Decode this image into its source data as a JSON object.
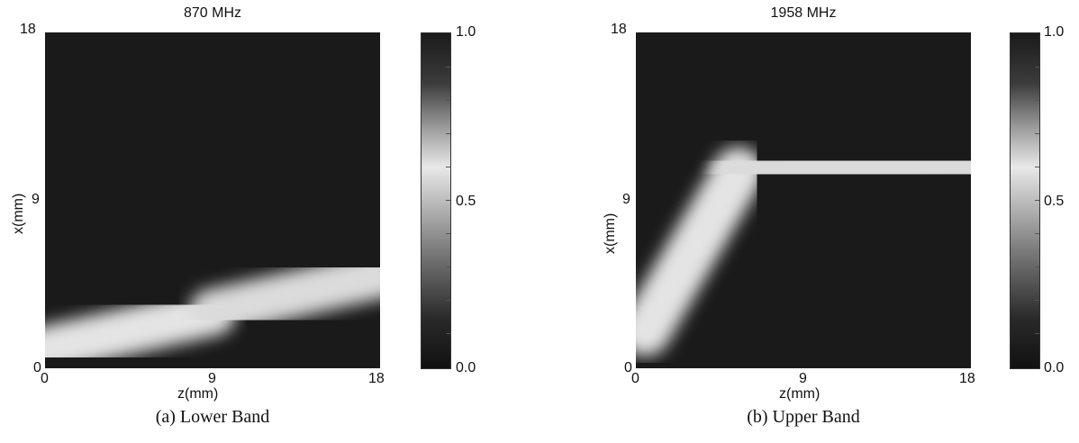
{
  "chart_data": [
    {
      "type": "heatmap",
      "title": "870 MHz",
      "xlabel": "z(mm)",
      "ylabel": "x(mm)",
      "xlim": [
        0,
        18
      ],
      "ylim": [
        0,
        18
      ],
      "x_ticks": [
        "0",
        "9",
        "18"
      ],
      "y_ticks": [
        "0",
        "9",
        "18"
      ],
      "colorbar": {
        "range": [
          0.0,
          1.0
        ],
        "ticks": [
          "0.0",
          "0.5",
          "1.0"
        ],
        "colormap": "black-white-black"
      },
      "caption": "(a) Lower Band",
      "bands": [
        {
          "z0": 0,
          "x0": 1,
          "z1": 9,
          "x1": 3,
          "level": 0.6
        },
        {
          "z0": 9,
          "x0": 3,
          "z1": 18,
          "x1": 5,
          "level": 0.55
        }
      ]
    },
    {
      "type": "heatmap",
      "title": "1958 MHz",
      "xlabel": "z(mm)",
      "ylabel": "x(mm)",
      "xlim": [
        0,
        18
      ],
      "ylim": [
        0,
        18
      ],
      "x_ticks": [
        "0",
        "9",
        "18"
      ],
      "y_ticks": [
        "0",
        "9",
        "18"
      ],
      "colorbar": {
        "range": [
          0.0,
          1.0
        ],
        "ticks": [
          "0.0",
          "0.5",
          "1.0"
        ],
        "colormap": "black-white-black"
      },
      "caption": "(b) Upper Band",
      "bands": [
        {
          "z0": 0.5,
          "x0": 2,
          "z1": 5.5,
          "x1": 10.5,
          "level": 0.6
        },
        {
          "z0": 5.5,
          "x0": 10.5,
          "z1": 18,
          "x1": 11,
          "level": 0.55
        }
      ]
    }
  ]
}
